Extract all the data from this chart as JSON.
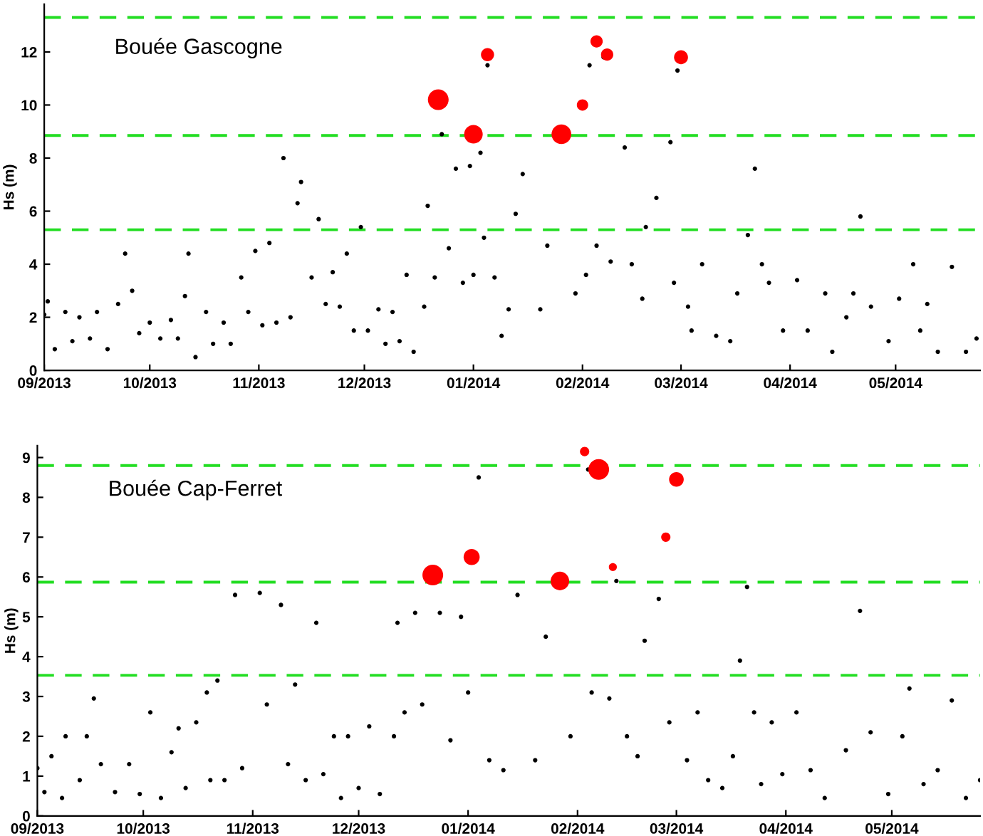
{
  "chart_data": [
    {
      "type": "scatter",
      "title": "Bouée Gascogne",
      "ylabel": "Hs (m)",
      "marker": "circle",
      "grid": false,
      "legend": false,
      "xlim": [
        "2013-09-01",
        "2014-05-25"
      ],
      "ylim": [
        0,
        13.8
      ],
      "yticks": [
        0,
        2,
        4,
        6,
        8,
        10,
        12
      ],
      "xticks": [
        {
          "value": "2013-09-01",
          "label": "09/2013"
        },
        {
          "value": "2013-10-01",
          "label": "10/2013"
        },
        {
          "value": "2013-11-01",
          "label": "11/2013"
        },
        {
          "value": "2013-12-01",
          "label": "12/2013"
        },
        {
          "value": "2014-01-01",
          "label": "01/2014"
        },
        {
          "value": "2014-02-01",
          "label": "02/2014"
        },
        {
          "value": "2014-03-01",
          "label": "03/2014"
        },
        {
          "value": "2014-04-01",
          "label": "04/2014"
        },
        {
          "value": "2014-05-01",
          "label": "05/2014"
        }
      ],
      "ref_lines": [
        {
          "axis": "y",
          "value": 13.3,
          "color": "#22dd22",
          "line_style": "dashed"
        },
        {
          "axis": "y",
          "value": 8.85,
          "color": "#22dd22",
          "line_style": "dashed"
        },
        {
          "axis": "y",
          "value": 5.3,
          "color": "#22dd22",
          "line_style": "dashed"
        }
      ],
      "series": [
        {
          "color": "#000000",
          "x": [
            "2013-09-01",
            "2013-09-02",
            "2013-09-04",
            "2013-09-07",
            "2013-09-09",
            "2013-09-11",
            "2013-09-14",
            "2013-09-16",
            "2013-09-19",
            "2013-09-22",
            "2013-09-24",
            "2013-09-26",
            "2013-09-28",
            "2013-10-01",
            "2013-10-04",
            "2013-10-07",
            "2013-10-09",
            "2013-10-11",
            "2013-10-12",
            "2013-10-14",
            "2013-10-17",
            "2013-10-19",
            "2013-10-22",
            "2013-10-24",
            "2013-10-27",
            "2013-10-29",
            "2013-10-31",
            "2013-11-02",
            "2013-11-04",
            "2013-11-06",
            "2013-11-08",
            "2013-11-10",
            "2013-11-12",
            "2013-11-13",
            "2013-11-16",
            "2013-11-18",
            "2013-11-20",
            "2013-11-22",
            "2013-11-24",
            "2013-11-26",
            "2013-11-28",
            "2013-11-30",
            "2013-12-02",
            "2013-12-05",
            "2013-12-07",
            "2013-12-09",
            "2013-12-11",
            "2013-12-13",
            "2013-12-15",
            "2013-12-18",
            "2013-12-19",
            "2013-12-21",
            "2013-12-23",
            "2013-12-25",
            "2013-12-27",
            "2013-12-29",
            "2013-12-31",
            "2014-01-01",
            "2014-01-03",
            "2014-01-04",
            "2014-01-05",
            "2014-01-07",
            "2014-01-09",
            "2014-01-11",
            "2014-01-13",
            "2014-01-15",
            "2014-01-20",
            "2014-01-22",
            "2014-01-30",
            "2014-02-02",
            "2014-02-03",
            "2014-02-05",
            "2014-02-07",
            "2014-02-09",
            "2014-02-13",
            "2014-02-15",
            "2014-02-18",
            "2014-02-19",
            "2014-02-22",
            "2014-02-26",
            "2014-02-27",
            "2014-02-28",
            "2014-03-03",
            "2014-03-04",
            "2014-03-07",
            "2014-03-11",
            "2014-03-15",
            "2014-03-17",
            "2014-03-20",
            "2014-03-22",
            "2014-03-24",
            "2014-03-26",
            "2014-03-30",
            "2014-04-03",
            "2014-04-06",
            "2014-04-11",
            "2014-04-13",
            "2014-04-17",
            "2014-04-19",
            "2014-04-21",
            "2014-04-24",
            "2014-04-29",
            "2014-05-02",
            "2014-05-06",
            "2014-05-08",
            "2014-05-10",
            "2014-05-13",
            "2014-05-17",
            "2014-05-21",
            "2014-05-24"
          ],
          "values": [
            2.1,
            2.6,
            0.8,
            2.2,
            1.1,
            2.0,
            1.2,
            2.2,
            0.8,
            2.5,
            4.4,
            3.0,
            1.4,
            1.8,
            1.2,
            1.9,
            1.2,
            2.8,
            4.4,
            0.5,
            2.2,
            1.0,
            1.8,
            1.0,
            3.5,
            2.2,
            4.5,
            1.7,
            4.8,
            1.8,
            8.0,
            2.0,
            6.3,
            7.1,
            3.5,
            5.7,
            2.5,
            3.7,
            2.4,
            4.4,
            1.5,
            5.4,
            1.5,
            2.3,
            1.0,
            2.2,
            1.1,
            3.6,
            0.7,
            2.4,
            6.2,
            3.5,
            8.9,
            4.6,
            7.6,
            3.3,
            7.7,
            3.6,
            8.2,
            5.0,
            11.5,
            3.5,
            1.3,
            2.3,
            5.9,
            7.4,
            2.3,
            4.7,
            2.9,
            3.6,
            11.5,
            4.7,
            11.8,
            4.1,
            8.4,
            4.0,
            2.7,
            5.4,
            6.5,
            8.6,
            3.3,
            11.3,
            2.4,
            1.5,
            4.0,
            1.3,
            1.1,
            2.9,
            5.1,
            7.6,
            4.0,
            3.3,
            1.5,
            3.4,
            1.5,
            2.9,
            0.7,
            2.0,
            2.9,
            5.8,
            2.4,
            1.1,
            2.7,
            4.0,
            1.5,
            2.5,
            0.7,
            3.9,
            0.7,
            1.2
          ]
        },
        {
          "type": "bubble",
          "color": "#ff0000",
          "x": [
            "2013-12-22",
            "2014-01-01",
            "2014-01-05",
            "2014-01-26",
            "2014-02-01",
            "2014-02-05",
            "2014-02-08",
            "2014-03-01"
          ],
          "values": [
            10.2,
            8.9,
            11.9,
            8.9,
            10.0,
            12.4,
            11.9,
            11.8
          ],
          "sizes": [
            1,
            0.8,
            0.4,
            0.9,
            0.3,
            0.35,
            0.35,
            0.45
          ]
        }
      ]
    },
    {
      "type": "scatter",
      "title": "Bouée Cap-Ferret",
      "ylabel": "Hs (m)",
      "marker": "circle",
      "grid": false,
      "legend": false,
      "xlim": [
        "2013-09-01",
        "2014-05-26"
      ],
      "ylim": [
        0,
        9.3
      ],
      "yticks": [
        0,
        1,
        2,
        3,
        4,
        5,
        6,
        7,
        8,
        9
      ],
      "xticks": [
        {
          "value": "2013-09-01",
          "label": "09/2013"
        },
        {
          "value": "2013-10-01",
          "label": "10/2013"
        },
        {
          "value": "2013-11-01",
          "label": "11/2013"
        },
        {
          "value": "2013-12-01",
          "label": "12/2013"
        },
        {
          "value": "2014-01-01",
          "label": "01/2014"
        },
        {
          "value": "2014-02-01",
          "label": "02/2014"
        },
        {
          "value": "2014-03-01",
          "label": "03/2014"
        },
        {
          "value": "2014-04-01",
          "label": "04/2014"
        },
        {
          "value": "2014-05-01",
          "label": "05/2014"
        }
      ],
      "ref_lines": [
        {
          "axis": "y",
          "value": 8.8,
          "color": "#22dd22",
          "line_style": "dashed"
        },
        {
          "axis": "y",
          "value": 5.87,
          "color": "#22dd22",
          "line_style": "dashed"
        },
        {
          "axis": "y",
          "value": 3.53,
          "color": "#22dd22",
          "line_style": "dashed"
        }
      ],
      "series": [
        {
          "color": "#000000",
          "x": [
            "2013-09-01",
            "2013-09-03",
            "2013-09-05",
            "2013-09-08",
            "2013-09-09",
            "2013-09-13",
            "2013-09-15",
            "2013-09-17",
            "2013-09-19",
            "2013-09-23",
            "2013-09-27",
            "2013-09-30",
            "2013-10-03",
            "2013-10-06",
            "2013-10-09",
            "2013-10-11",
            "2013-10-13",
            "2013-10-16",
            "2013-10-19",
            "2013-10-20",
            "2013-10-22",
            "2013-10-24",
            "2013-10-27",
            "2013-10-29",
            "2013-11-03",
            "2013-11-05",
            "2013-11-09",
            "2013-11-11",
            "2013-11-13",
            "2013-11-16",
            "2013-11-19",
            "2013-11-21",
            "2013-11-24",
            "2013-11-26",
            "2013-11-28",
            "2013-12-01",
            "2013-12-04",
            "2013-12-07",
            "2013-12-11",
            "2013-12-12",
            "2013-12-14",
            "2013-12-17",
            "2013-12-19",
            "2013-12-24",
            "2013-12-27",
            "2013-12-30",
            "2014-01-01",
            "2014-01-04",
            "2014-01-07",
            "2014-01-11",
            "2014-01-15",
            "2014-01-20",
            "2014-01-23",
            "2014-01-30",
            "2014-02-04",
            "2014-02-05",
            "2014-02-10",
            "2014-02-12",
            "2014-02-15",
            "2014-02-18",
            "2014-02-20",
            "2014-02-24",
            "2014-02-27",
            "2014-03-04",
            "2014-03-07",
            "2014-03-10",
            "2014-03-14",
            "2014-03-17",
            "2014-03-19",
            "2014-03-21",
            "2014-03-23",
            "2014-03-25",
            "2014-03-28",
            "2014-03-31",
            "2014-04-04",
            "2014-04-08",
            "2014-04-12",
            "2014-04-18",
            "2014-04-22",
            "2014-04-25",
            "2014-04-30",
            "2014-05-04",
            "2014-05-06",
            "2014-05-10",
            "2014-05-14",
            "2014-05-18",
            "2014-05-22",
            "2014-05-26"
          ],
          "values": [
            1.2,
            0.6,
            1.5,
            0.45,
            2.0,
            0.9,
            2.0,
            2.95,
            1.3,
            0.6,
            1.3,
            0.55,
            2.6,
            0.45,
            1.6,
            2.2,
            0.7,
            2.35,
            3.1,
            0.9,
            3.4,
            0.9,
            5.55,
            1.2,
            5.6,
            2.8,
            5.3,
            1.3,
            3.3,
            0.9,
            4.85,
            1.05,
            2.0,
            0.45,
            2.0,
            0.7,
            2.25,
            0.55,
            2.0,
            4.85,
            2.6,
            5.1,
            2.8,
            5.1,
            1.9,
            5.0,
            3.1,
            8.5,
            1.4,
            1.15,
            5.55,
            1.4,
            4.5,
            2.0,
            8.7,
            3.1,
            2.95,
            5.9,
            2.0,
            1.5,
            4.4,
            5.45,
            2.35,
            1.4,
            2.6,
            0.9,
            0.7,
            1.5,
            3.9,
            5.75,
            2.6,
            0.8,
            2.35,
            1.05,
            2.6,
            1.15,
            0.45,
            1.65,
            5.15,
            2.1,
            0.55,
            2.0,
            3.2,
            0.8,
            1.15,
            2.9,
            0.45,
            0.9
          ]
        },
        {
          "type": "bubble",
          "color": "#ff0000",
          "x": [
            "2013-12-22",
            "2014-01-02",
            "2014-01-27",
            "2014-02-03",
            "2014-02-07",
            "2014-02-11",
            "2014-02-26",
            "2014-03-01"
          ],
          "values": [
            6.05,
            6.5,
            5.9,
            9.15,
            8.7,
            6.25,
            7.0,
            8.45
          ],
          "sizes": [
            1,
            0.6,
            0.8,
            0.2,
            1,
            0.15,
            0.2,
            0.5
          ]
        }
      ]
    }
  ]
}
